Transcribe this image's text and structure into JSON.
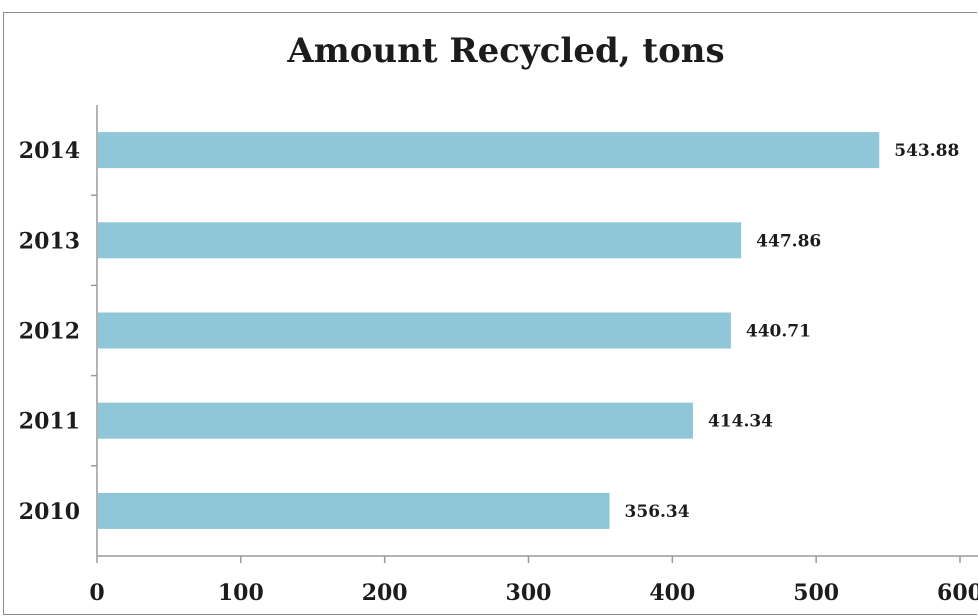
{
  "chart_data": {
    "type": "bar",
    "orientation": "horizontal",
    "title": "Amount Recycled, tons",
    "categories": [
      "2010",
      "2011",
      "2012",
      "2013",
      "2014"
    ],
    "values": [
      356.34,
      414.34,
      440.71,
      447.86,
      543.88
    ],
    "data_labels": [
      "356.34",
      "414.34",
      "440.71",
      "447.86",
      "543.88"
    ],
    "xlim": [
      0,
      600
    ],
    "x_ticks": [
      "0",
      "100",
      "200",
      "300",
      "400",
      "500",
      "600"
    ],
    "grid": false,
    "legend": "none",
    "bar_color": "#8fc6d8"
  }
}
